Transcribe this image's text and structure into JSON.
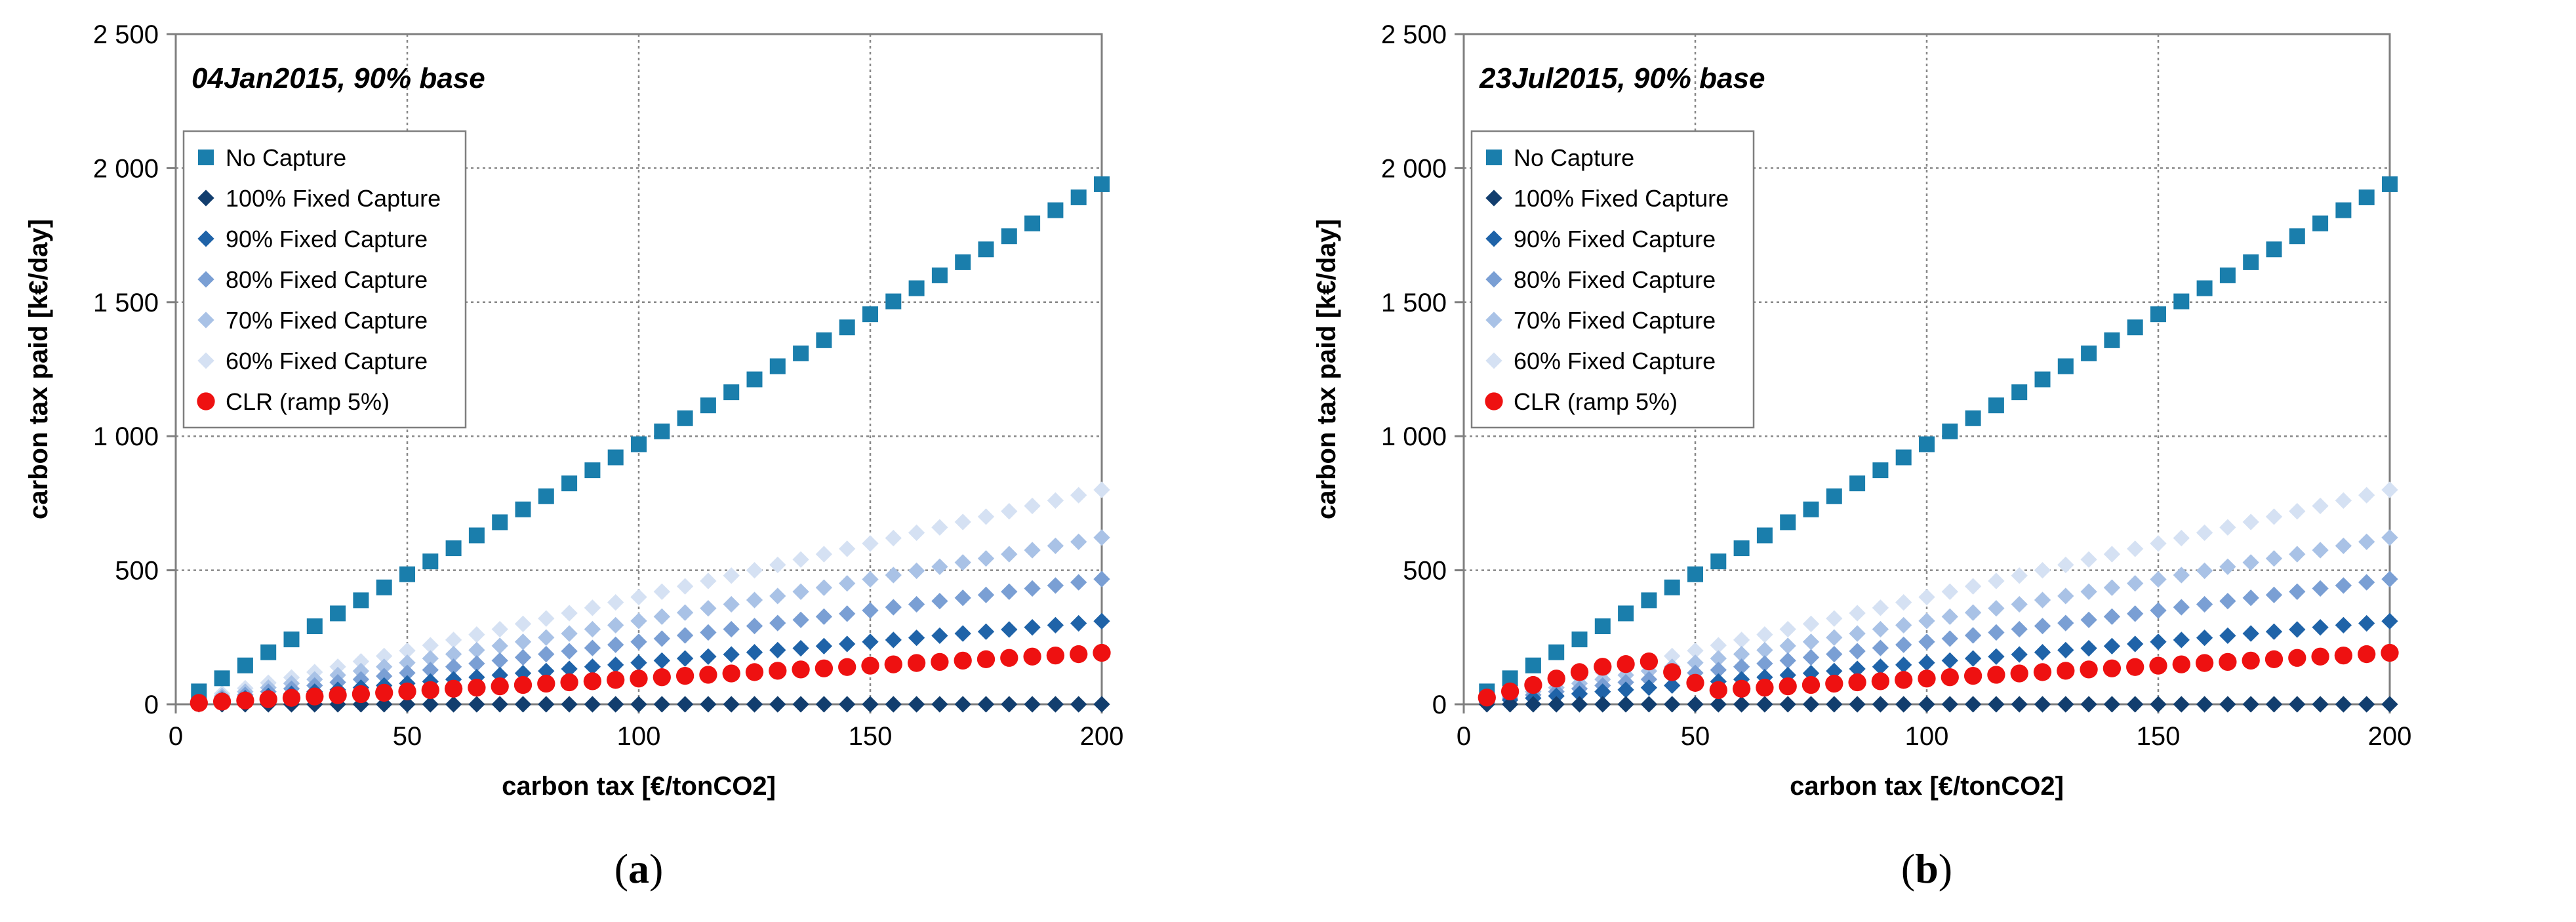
{
  "colors": {
    "no_capture": "#1a7eac",
    "fixed_100": "#123e6e",
    "fixed_90": "#1f63a8",
    "fixed_80": "#7a9fd4",
    "fixed_70": "#a9c2e6",
    "fixed_60": "#d5e1f3",
    "clr": "#ee1111",
    "grid": "#888888"
  },
  "chart_data": [
    {
      "type": "scatter",
      "caption_letter": "a",
      "title": "04Jan2015, 90% base",
      "xlabel": "carbon tax [€/tonCO2]",
      "ylabel": "carbon tax paid [k€/day]",
      "xlim": [
        0,
        200
      ],
      "ylim": [
        0,
        2500
      ],
      "xticks": [
        0,
        50,
        100,
        150,
        200
      ],
      "xtick_labels": [
        "0",
        "50",
        "100",
        "150",
        "200"
      ],
      "yticks": [
        0,
        500,
        1000,
        1500,
        2000,
        2500
      ],
      "ytick_labels": [
        "0",
        "500",
        "1 000",
        "1 500",
        "2 000",
        "2 500"
      ],
      "grid": true,
      "legend_position": "top-left",
      "x": [
        5,
        10,
        15,
        20,
        25,
        30,
        35,
        40,
        45,
        50,
        55,
        60,
        65,
        70,
        75,
        80,
        85,
        90,
        95,
        100,
        105,
        110,
        115,
        120,
        125,
        130,
        135,
        140,
        145,
        150,
        155,
        160,
        165,
        170,
        175,
        180,
        185,
        190,
        195,
        200
      ],
      "series": [
        {
          "name": "No Capture",
          "marker": "square",
          "color_key": "no_capture",
          "values": [
            48,
            97,
            145,
            194,
            242,
            291,
            339,
            388,
            436,
            485,
            533,
            582,
            630,
            679,
            727,
            776,
            824,
            873,
            921,
            970,
            1018,
            1067,
            1115,
            1164,
            1212,
            1261,
            1309,
            1358,
            1406,
            1455,
            1503,
            1552,
            1600,
            1649,
            1697,
            1746,
            1794,
            1843,
            1891,
            1940
          ]
        },
        {
          "name": "100% Fixed Capture",
          "marker": "diamond",
          "color_key": "fixed_100",
          "values": [
            0,
            0,
            0,
            0,
            0,
            0,
            0,
            0,
            0,
            0,
            0,
            0,
            0,
            0,
            0,
            0,
            0,
            0,
            0,
            0,
            0,
            0,
            0,
            0,
            0,
            0,
            0,
            0,
            0,
            0,
            0,
            0,
            0,
            0,
            0,
            0,
            0,
            0,
            0,
            0
          ]
        },
        {
          "name": "90% Fixed Capture",
          "marker": "diamond",
          "color_key": "fixed_90",
          "values": [
            8,
            16,
            23,
            31,
            39,
            47,
            54,
            62,
            70,
            78,
            85,
            93,
            101,
            109,
            116,
            124,
            132,
            140,
            147,
            155,
            163,
            171,
            178,
            186,
            194,
            202,
            209,
            217,
            225,
            233,
            240,
            248,
            256,
            264,
            271,
            279,
            287,
            295,
            302,
            310
          ]
        },
        {
          "name": "80% Fixed Capture",
          "marker": "diamond",
          "color_key": "fixed_80",
          "values": [
            12,
            23,
            35,
            47,
            58,
            70,
            82,
            93,
            105,
            117,
            128,
            140,
            152,
            163,
            175,
            187,
            198,
            210,
            222,
            233,
            245,
            257,
            268,
            280,
            292,
            303,
            315,
            327,
            338,
            350,
            362,
            373,
            385,
            397,
            408,
            420,
            432,
            443,
            455,
            467
          ]
        },
        {
          "name": "70% Fixed Capture",
          "marker": "diamond",
          "color_key": "fixed_70",
          "values": [
            16,
            31,
            47,
            62,
            78,
            93,
            109,
            124,
            140,
            155,
            171,
            187,
            202,
            218,
            233,
            249,
            264,
            280,
            295,
            311,
            327,
            342,
            358,
            373,
            389,
            404,
            420,
            435,
            451,
            466,
            482,
            498,
            513,
            529,
            544,
            560,
            575,
            591,
            606,
            622
          ]
        },
        {
          "name": "60% Fixed Capture",
          "marker": "diamond",
          "color_key": "fixed_60",
          "values": [
            20,
            40,
            60,
            80,
            100,
            120,
            140,
            160,
            180,
            200,
            220,
            240,
            260,
            280,
            300,
            320,
            340,
            360,
            380,
            400,
            420,
            440,
            460,
            480,
            500,
            520,
            540,
            560,
            580,
            600,
            620,
            640,
            660,
            680,
            700,
            720,
            740,
            760,
            780,
            800
          ]
        },
        {
          "name": "CLR (ramp 5%)",
          "marker": "circle",
          "color_key": "clr",
          "values": [
            5,
            10,
            14,
            19,
            24,
            29,
            34,
            38,
            43,
            48,
            53,
            58,
            62,
            67,
            72,
            77,
            82,
            86,
            91,
            96,
            101,
            106,
            110,
            115,
            120,
            125,
            130,
            134,
            139,
            144,
            149,
            154,
            158,
            163,
            168,
            173,
            178,
            182,
            187,
            192
          ]
        }
      ]
    },
    {
      "type": "scatter",
      "caption_letter": "b",
      "title": "23Jul2015, 90% base",
      "xlabel": "carbon tax [€/tonCO2]",
      "ylabel": "carbon tax paid [k€/day]",
      "xlim": [
        0,
        200
      ],
      "ylim": [
        0,
        2500
      ],
      "xticks": [
        0,
        50,
        100,
        150,
        200
      ],
      "xtick_labels": [
        "0",
        "50",
        "100",
        "150",
        "200"
      ],
      "yticks": [
        0,
        500,
        1000,
        1500,
        2000,
        2500
      ],
      "ytick_labels": [
        "0",
        "500",
        "1 000",
        "1 500",
        "2 000",
        "2 500"
      ],
      "grid": true,
      "legend_position": "top-left",
      "x": [
        5,
        10,
        15,
        20,
        25,
        30,
        35,
        40,
        45,
        50,
        55,
        60,
        65,
        70,
        75,
        80,
        85,
        90,
        95,
        100,
        105,
        110,
        115,
        120,
        125,
        130,
        135,
        140,
        145,
        150,
        155,
        160,
        165,
        170,
        175,
        180,
        185,
        190,
        195,
        200
      ],
      "series": [
        {
          "name": "No Capture",
          "marker": "square",
          "color_key": "no_capture",
          "values": [
            48,
            97,
            145,
            194,
            242,
            291,
            339,
            388,
            436,
            485,
            533,
            582,
            630,
            679,
            727,
            776,
            824,
            873,
            921,
            970,
            1018,
            1067,
            1115,
            1164,
            1212,
            1261,
            1309,
            1358,
            1406,
            1455,
            1503,
            1552,
            1600,
            1649,
            1697,
            1746,
            1794,
            1843,
            1891,
            1940
          ]
        },
        {
          "name": "100% Fixed Capture",
          "marker": "diamond",
          "color_key": "fixed_100",
          "values": [
            0,
            0,
            0,
            0,
            0,
            0,
            0,
            0,
            0,
            0,
            0,
            0,
            0,
            0,
            0,
            0,
            0,
            0,
            0,
            0,
            0,
            0,
            0,
            0,
            0,
            0,
            0,
            0,
            0,
            0,
            0,
            0,
            0,
            0,
            0,
            0,
            0,
            0,
            0,
            0
          ]
        },
        {
          "name": "90% Fixed Capture",
          "marker": "diamond",
          "color_key": "fixed_90",
          "values": [
            8,
            16,
            23,
            31,
            39,
            47,
            54,
            62,
            70,
            78,
            85,
            93,
            101,
            109,
            116,
            124,
            132,
            140,
            147,
            155,
            163,
            171,
            178,
            186,
            194,
            202,
            209,
            217,
            225,
            233,
            240,
            248,
            256,
            264,
            271,
            279,
            287,
            295,
            302,
            310
          ]
        },
        {
          "name": "80% Fixed Capture",
          "marker": "diamond",
          "color_key": "fixed_80",
          "values": [
            12,
            23,
            35,
            47,
            58,
            70,
            82,
            93,
            105,
            117,
            128,
            140,
            152,
            163,
            175,
            187,
            198,
            210,
            222,
            233,
            245,
            257,
            268,
            280,
            292,
            303,
            315,
            327,
            338,
            350,
            362,
            373,
            385,
            397,
            408,
            420,
            432,
            443,
            455,
            467
          ]
        },
        {
          "name": "70% Fixed Capture",
          "marker": "diamond",
          "color_key": "fixed_70",
          "values": [
            16,
            31,
            47,
            62,
            78,
            93,
            109,
            124,
            140,
            155,
            171,
            187,
            202,
            218,
            233,
            249,
            264,
            280,
            295,
            311,
            327,
            342,
            358,
            373,
            389,
            404,
            420,
            435,
            451,
            466,
            482,
            498,
            513,
            529,
            544,
            560,
            575,
            591,
            606,
            622
          ]
        },
        {
          "name": "60% Fixed Capture",
          "marker": "diamond",
          "color_key": "fixed_60",
          "values": [
            20,
            40,
            60,
            80,
            100,
            120,
            140,
            160,
            180,
            200,
            220,
            240,
            260,
            280,
            300,
            320,
            340,
            360,
            380,
            400,
            420,
            440,
            460,
            480,
            500,
            520,
            540,
            560,
            580,
            600,
            620,
            640,
            660,
            680,
            700,
            720,
            740,
            760,
            780,
            800
          ]
        },
        {
          "name": "CLR (ramp 5%)",
          "marker": "circle",
          "color_key": "clr",
          "values": [
            25,
            48,
            72,
            96,
            120,
            140,
            150,
            160,
            120,
            80,
            53,
            58,
            62,
            67,
            72,
            77,
            82,
            86,
            91,
            96,
            101,
            106,
            110,
            115,
            120,
            125,
            130,
            134,
            139,
            144,
            149,
            154,
            158,
            163,
            168,
            173,
            178,
            182,
            187,
            192
          ]
        }
      ]
    }
  ]
}
